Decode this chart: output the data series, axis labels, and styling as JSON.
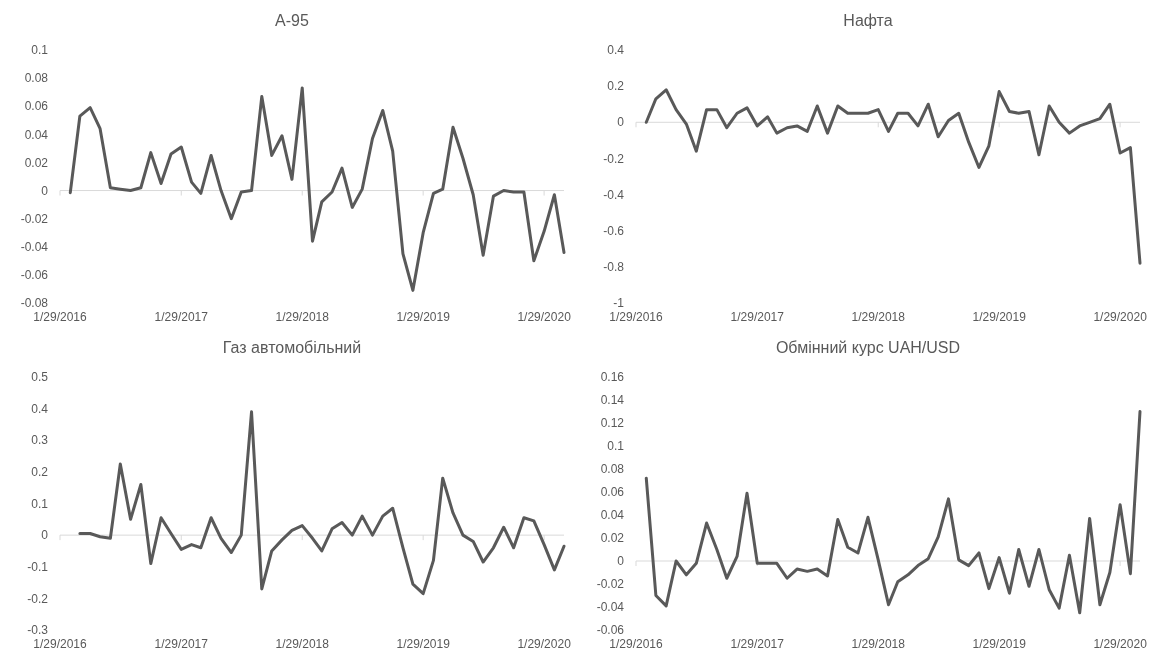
{
  "chart_data": [
    {
      "type": "line",
      "title": "А-95",
      "x": [
        "2016-02",
        "2016-03",
        "2016-04",
        "2016-05",
        "2016-06",
        "2016-07",
        "2016-08",
        "2016-09",
        "2016-10",
        "2016-11",
        "2016-12",
        "2017-01",
        "2017-02",
        "2017-03",
        "2017-04",
        "2017-05",
        "2017-06",
        "2017-07",
        "2017-08",
        "2017-09",
        "2017-10",
        "2017-11",
        "2017-12",
        "2018-01",
        "2018-02",
        "2018-03",
        "2018-04",
        "2018-05",
        "2018-06",
        "2018-07",
        "2018-08",
        "2018-09",
        "2018-10",
        "2018-11",
        "2018-12",
        "2019-01",
        "2019-02",
        "2019-03",
        "2019-04",
        "2019-05",
        "2019-06",
        "2019-07",
        "2019-08",
        "2019-09",
        "2019-10",
        "2019-11",
        "2019-12",
        "2020-01",
        "2020-02",
        "2020-03"
      ],
      "xlim": [
        "2016-01",
        "2020-03"
      ],
      "xticks": [
        {
          "value": "2016-01",
          "label": "1/29/2016"
        },
        {
          "value": "2017-01",
          "label": "1/29/2017"
        },
        {
          "value": "2018-01",
          "label": "1/29/2018"
        },
        {
          "value": "2019-01",
          "label": "1/29/2019"
        },
        {
          "value": "2020-01",
          "label": "1/29/2020"
        }
      ],
      "ylim": [
        -0.08,
        0.1
      ],
      "yticks": [
        -0.08,
        -0.06,
        -0.04,
        -0.02,
        0,
        0.02,
        0.04,
        0.06,
        0.08,
        0.1
      ],
      "series": [
        {
          "color": "#595959",
          "values": [
            -0.0015,
            0.053,
            0.059,
            0.044,
            0.002,
            0.001,
            0.0,
            0.002,
            0.027,
            0.005,
            0.026,
            0.031,
            0.006,
            -0.002,
            0.025,
            0.0,
            -0.02,
            -0.001,
            0.0,
            0.067,
            0.025,
            0.039,
            0.008,
            0.073,
            -0.036,
            -0.008,
            -0.001,
            0.016,
            -0.012,
            0.001,
            0.037,
            0.057,
            0.028,
            -0.045,
            -0.071,
            -0.03,
            -0.002,
            0.001,
            0.045,
            0.023,
            -0.003,
            -0.046,
            -0.004,
            0.0,
            -0.001,
            -0.001,
            -0.05,
            -0.029,
            -0.003,
            -0.044
          ]
        }
      ]
    },
    {
      "type": "line",
      "title": "Нафта",
      "x": [
        "2016-02",
        "2016-03",
        "2016-04",
        "2016-05",
        "2016-06",
        "2016-07",
        "2016-08",
        "2016-09",
        "2016-10",
        "2016-11",
        "2016-12",
        "2017-01",
        "2017-02",
        "2017-03",
        "2017-04",
        "2017-05",
        "2017-06",
        "2017-07",
        "2017-08",
        "2017-09",
        "2017-10",
        "2017-11",
        "2017-12",
        "2018-01",
        "2018-02",
        "2018-03",
        "2018-04",
        "2018-05",
        "2018-06",
        "2018-07",
        "2018-08",
        "2018-09",
        "2018-10",
        "2018-11",
        "2018-12",
        "2019-01",
        "2019-02",
        "2019-03",
        "2019-04",
        "2019-05",
        "2019-06",
        "2019-07",
        "2019-08",
        "2019-09",
        "2019-10",
        "2019-11",
        "2019-12",
        "2020-01",
        "2020-02",
        "2020-03"
      ],
      "xlim": [
        "2016-01",
        "2020-03"
      ],
      "xticks": [
        {
          "value": "2016-01",
          "label": "1/29/2016"
        },
        {
          "value": "2017-01",
          "label": "1/29/2017"
        },
        {
          "value": "2018-01",
          "label": "1/29/2018"
        },
        {
          "value": "2019-01",
          "label": "1/29/2019"
        },
        {
          "value": "2020-01",
          "label": "1/29/2020"
        }
      ],
      "ylim": [
        -1,
        0.4
      ],
      "yticks": [
        -1,
        -0.8,
        -0.6,
        -0.4,
        -0.2,
        0,
        0.2,
        0.4
      ],
      "series": [
        {
          "color": "#595959",
          "values": [
            0.0,
            0.13,
            0.18,
            0.07,
            -0.01,
            -0.16,
            0.07,
            0.07,
            -0.03,
            0.05,
            0.08,
            -0.02,
            0.03,
            -0.06,
            -0.03,
            -0.02,
            -0.05,
            0.09,
            -0.06,
            0.09,
            0.05,
            0.05,
            0.05,
            0.07,
            -0.05,
            0.05,
            0.05,
            -0.02,
            0.1,
            -0.08,
            0.01,
            0.05,
            -0.11,
            -0.25,
            -0.13,
            0.17,
            0.06,
            0.05,
            0.06,
            -0.18,
            0.09,
            0.0,
            -0.06,
            -0.02,
            0.0,
            0.02,
            0.1,
            -0.17,
            -0.14,
            -0.78
          ]
        }
      ]
    },
    {
      "type": "line",
      "title": "Газ автомобільний",
      "x": [
        "2016-03",
        "2016-04",
        "2016-05",
        "2016-06",
        "2016-07",
        "2016-08",
        "2016-09",
        "2016-10",
        "2016-11",
        "2016-12",
        "2017-01",
        "2017-02",
        "2017-03",
        "2017-04",
        "2017-05",
        "2017-06",
        "2017-07",
        "2017-08",
        "2017-09",
        "2017-10",
        "2017-11",
        "2017-12",
        "2018-01",
        "2018-02",
        "2018-03",
        "2018-04",
        "2018-05",
        "2018-06",
        "2018-07",
        "2018-08",
        "2018-09",
        "2018-10",
        "2018-11",
        "2018-12",
        "2019-01",
        "2019-02",
        "2019-03",
        "2019-04",
        "2019-05",
        "2019-06",
        "2019-07",
        "2019-08",
        "2019-09",
        "2019-10",
        "2019-11",
        "2019-12",
        "2020-01",
        "2020-02",
        "2020-03"
      ],
      "xlim": [
        "2016-01",
        "2020-03"
      ],
      "xticks": [
        {
          "value": "2016-01",
          "label": "1/29/2016"
        },
        {
          "value": "2017-01",
          "label": "1/29/2017"
        },
        {
          "value": "2018-01",
          "label": "1/29/2018"
        },
        {
          "value": "2019-01",
          "label": "1/29/2019"
        },
        {
          "value": "2020-01",
          "label": "1/29/2020"
        }
      ],
      "ylim": [
        -0.3,
        0.5
      ],
      "yticks": [
        -0.3,
        -0.2,
        -0.1,
        0,
        0.1,
        0.2,
        0.3,
        0.4,
        0.5
      ],
      "series": [
        {
          "color": "#595959",
          "values": [
            0.005,
            0.005,
            -0.005,
            -0.01,
            0.225,
            0.05,
            0.16,
            -0.09,
            0.055,
            0.005,
            -0.045,
            -0.03,
            -0.04,
            0.055,
            -0.01,
            -0.055,
            0.0,
            0.39,
            -0.17,
            -0.05,
            -0.015,
            0.015,
            0.03,
            -0.01,
            -0.05,
            0.02,
            0.04,
            0.0,
            0.06,
            0.0,
            0.06,
            0.085,
            -0.04,
            -0.155,
            -0.185,
            -0.08,
            0.18,
            0.07,
            0.0,
            -0.02,
            -0.085,
            -0.04,
            0.025,
            -0.04,
            0.055,
            0.045,
            -0.03,
            -0.11,
            -0.035
          ]
        }
      ]
    },
    {
      "type": "line",
      "title": "Обмінний курс UAH/USD",
      "x": [
        "2016-02",
        "2016-03",
        "2016-04",
        "2016-05",
        "2016-06",
        "2016-07",
        "2016-08",
        "2016-09",
        "2016-10",
        "2016-11",
        "2016-12",
        "2017-01",
        "2017-02",
        "2017-03",
        "2017-04",
        "2017-05",
        "2017-06",
        "2017-07",
        "2017-08",
        "2017-09",
        "2017-10",
        "2017-11",
        "2017-12",
        "2018-01",
        "2018-02",
        "2018-03",
        "2018-04",
        "2018-05",
        "2018-06",
        "2018-07",
        "2018-08",
        "2018-09",
        "2018-10",
        "2018-11",
        "2018-12",
        "2019-01",
        "2019-02",
        "2019-03",
        "2019-04",
        "2019-05",
        "2019-06",
        "2019-07",
        "2019-08",
        "2019-09",
        "2019-10",
        "2019-11",
        "2019-12",
        "2020-01",
        "2020-02",
        "2020-03"
      ],
      "xlim": [
        "2016-01",
        "2020-03"
      ],
      "xticks": [
        {
          "value": "2016-01",
          "label": "1/29/2016"
        },
        {
          "value": "2017-01",
          "label": "1/29/2017"
        },
        {
          "value": "2018-01",
          "label": "1/29/2018"
        },
        {
          "value": "2019-01",
          "label": "1/29/2019"
        },
        {
          "value": "2020-01",
          "label": "1/29/2020"
        }
      ],
      "ylim": [
        -0.06,
        0.16
      ],
      "yticks": [
        -0.06,
        -0.04,
        -0.02,
        0,
        0.02,
        0.04,
        0.06,
        0.08,
        0.1,
        0.12,
        0.14,
        0.16
      ],
      "series": [
        {
          "color": "#595959",
          "values": [
            0.072,
            -0.03,
            -0.039,
            0.0,
            -0.012,
            -0.002,
            0.033,
            0.01,
            -0.015,
            0.004,
            0.059,
            -0.002,
            -0.002,
            -0.002,
            -0.015,
            -0.007,
            -0.009,
            -0.007,
            -0.013,
            0.036,
            0.012,
            0.007,
            0.038,
            0.001,
            -0.038,
            -0.018,
            -0.012,
            -0.004,
            0.002,
            0.021,
            0.054,
            0.001,
            -0.004,
            0.007,
            -0.024,
            0.003,
            -0.028,
            0.01,
            -0.022,
            0.01,
            -0.025,
            -0.041,
            0.005,
            -0.045,
            0.037,
            -0.038,
            -0.01,
            0.049,
            -0.011,
            0.13
          ]
        }
      ]
    }
  ]
}
